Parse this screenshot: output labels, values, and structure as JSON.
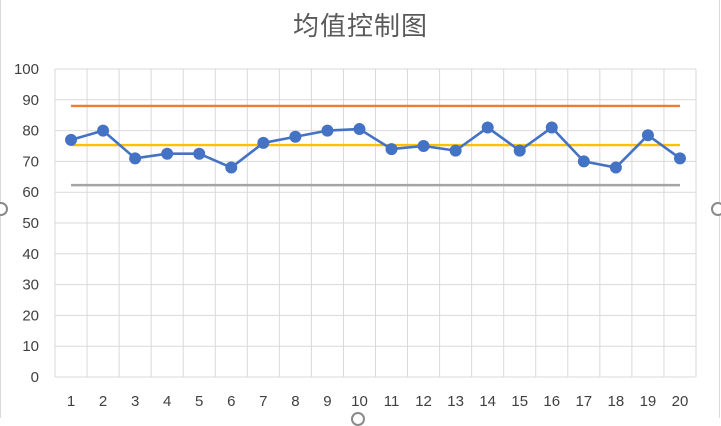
{
  "chart_data": {
    "type": "line",
    "title": "均值控制图",
    "xlabel": "",
    "ylabel": "",
    "categories": [
      "1",
      "2",
      "3",
      "4",
      "5",
      "6",
      "7",
      "8",
      "9",
      "10",
      "11",
      "12",
      "13",
      "14",
      "15",
      "16",
      "17",
      "18",
      "19",
      "20"
    ],
    "ylim": [
      0,
      100
    ],
    "yticks": [
      0,
      10,
      20,
      30,
      40,
      50,
      60,
      70,
      80,
      90,
      100
    ],
    "grid": true,
    "legend": "none",
    "series": [
      {
        "name": "",
        "color": "#4472c4",
        "marker": "circle",
        "values": [
          77,
          80,
          71,
          72.5,
          72.5,
          68,
          76,
          78,
          80,
          80.5,
          74,
          75,
          73.5,
          81,
          73.5,
          81,
          70,
          68,
          78.5,
          71
        ]
      },
      {
        "name": "",
        "color": "#ed7d31",
        "marker": "none",
        "values": [
          88,
          88,
          88,
          88,
          88,
          88,
          88,
          88,
          88,
          88,
          88,
          88,
          88,
          88,
          88,
          88,
          88,
          88,
          88,
          88
        ]
      },
      {
        "name": "",
        "color": "#ffc000",
        "marker": "none",
        "values": [
          75.3,
          75.3,
          75.3,
          75.3,
          75.3,
          75.3,
          75.3,
          75.3,
          75.3,
          75.3,
          75.3,
          75.3,
          75.3,
          75.3,
          75.3,
          75.3,
          75.3,
          75.3,
          75.3,
          75.3
        ]
      },
      {
        "name": "",
        "color": "#a5a5a5",
        "marker": "none",
        "values": [
          62.3,
          62.3,
          62.3,
          62.3,
          62.3,
          62.3,
          62.3,
          62.3,
          62.3,
          62.3,
          62.3,
          62.3,
          62.3,
          62.3,
          62.3,
          62.3,
          62.3,
          62.3,
          62.3,
          62.3
        ]
      }
    ]
  }
}
